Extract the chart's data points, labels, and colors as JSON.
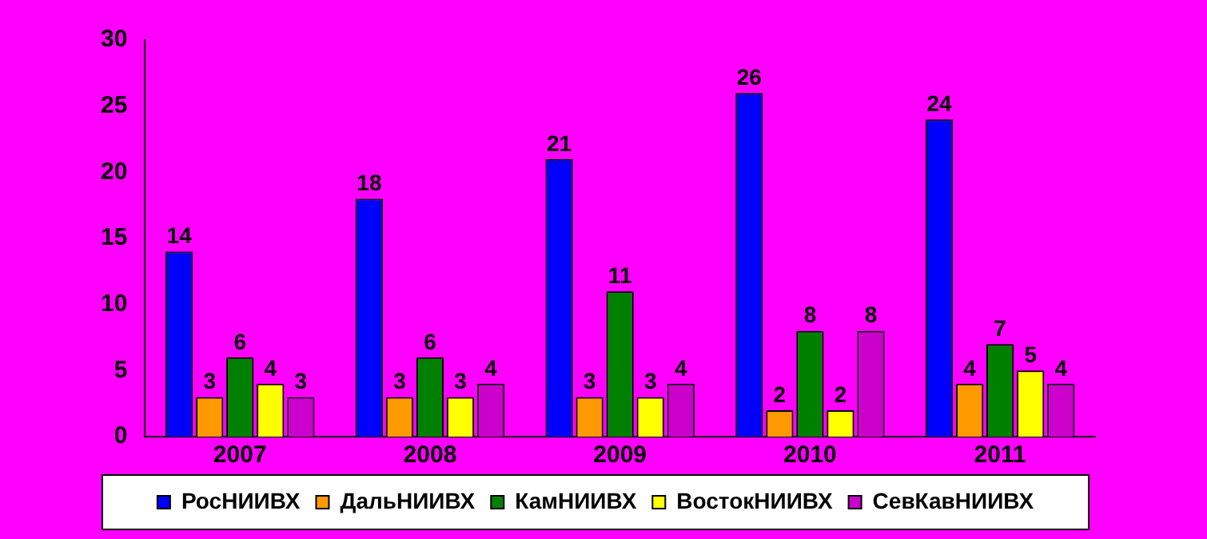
{
  "chart_data": {
    "type": "bar",
    "categories": [
      "2007",
      "2008",
      "2009",
      "2010",
      "2011"
    ],
    "series": [
      {
        "name": "РосНИИВХ",
        "color": "#0000ff",
        "values": [
          14,
          18,
          21,
          26,
          24
        ]
      },
      {
        "name": "ДальНИИВХ",
        "color": "#ff9900",
        "values": [
          3,
          3,
          3,
          2,
          4
        ]
      },
      {
        "name": "КамНИИВХ",
        "color": "#008000",
        "values": [
          6,
          6,
          11,
          8,
          7
        ]
      },
      {
        "name": "ВостокНИИВХ",
        "color": "#ffff00",
        "values": [
          4,
          3,
          3,
          2,
          5
        ]
      },
      {
        "name": "СевКавНИИВХ",
        "color": "#cc00cc",
        "values": [
          3,
          4,
          4,
          8,
          4
        ]
      }
    ],
    "ylim": [
      0,
      30
    ],
    "yticks": [
      0,
      5,
      10,
      15,
      20,
      25,
      30
    ],
    "grid": false,
    "legend": "bottom",
    "data_labels": true
  }
}
